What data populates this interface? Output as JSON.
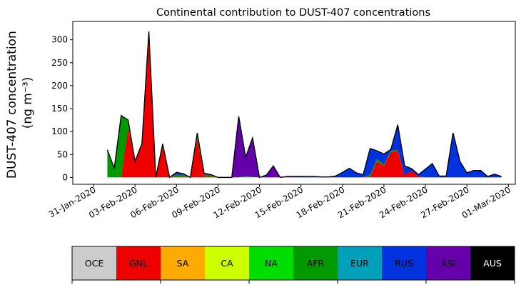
{
  "chart_data": {
    "type": "area",
    "stacked": true,
    "title": "Continental contribution to DUST-407 concentrations",
    "ylabel_line1": "DUST-407 concentration",
    "ylabel_line2": "(ng m⁻³)",
    "xlabel": "",
    "ylim": [
      -15,
      340
    ],
    "yticks": [
      0,
      50,
      100,
      150,
      200,
      250,
      300
    ],
    "xlim_days": [
      -1.5,
      30.5
    ],
    "grid": false,
    "xtick_labels": [
      "31-Jan-2020",
      "03-Feb-2020",
      "06-Feb-2020",
      "09-Feb-2020",
      "12-Feb-2020",
      "15-Feb-2020",
      "18-Feb-2020",
      "21-Feb-2020",
      "24-Feb-2020",
      "27-Feb-2020",
      "01-Mar-2020"
    ],
    "x": [
      "2020-02-01 00:00",
      "2020-02-01 12:00",
      "2020-02-02 00:00",
      "2020-02-02 12:00",
      "2020-02-03 00:00",
      "2020-02-03 12:00",
      "2020-02-04 00:00",
      "2020-02-04 12:00",
      "2020-02-05 00:00",
      "2020-02-05 12:00",
      "2020-02-06 00:00",
      "2020-02-06 12:00",
      "2020-02-07 00:00",
      "2020-02-07 12:00",
      "2020-02-08 00:00",
      "2020-02-08 12:00",
      "2020-02-09 00:00",
      "2020-02-09 12:00",
      "2020-02-10 00:00",
      "2020-02-10 12:00",
      "2020-02-11 00:00",
      "2020-02-11 12:00",
      "2020-02-12 00:00",
      "2020-02-12 12:00",
      "2020-02-13 00:00",
      "2020-02-13 12:00",
      "2020-02-14 00:00",
      "2020-02-14 12:00",
      "2020-02-15 00:00",
      "2020-02-15 12:00",
      "2020-02-16 00:00",
      "2020-02-16 12:00",
      "2020-02-17 00:00",
      "2020-02-17 12:00",
      "2020-02-18 00:00",
      "2020-02-18 12:00",
      "2020-02-19 00:00",
      "2020-02-19 12:00",
      "2020-02-20 00:00",
      "2020-02-20 12:00",
      "2020-02-21 00:00",
      "2020-02-21 12:00",
      "2020-02-22 00:00",
      "2020-02-22 12:00",
      "2020-02-23 00:00",
      "2020-02-23 12:00",
      "2020-02-24 00:00",
      "2020-02-24 12:00",
      "2020-02-25 00:00",
      "2020-02-25 12:00",
      "2020-02-26 00:00",
      "2020-02-26 12:00",
      "2020-02-27 00:00",
      "2020-02-27 12:00",
      "2020-02-28 00:00",
      "2020-02-28 12:00",
      "2020-02-29 00:00",
      "2020-02-29 12:00"
    ],
    "series": [
      {
        "name": "OCE",
        "color": "#cccccc",
        "values": [
          0,
          0,
          0,
          0,
          0,
          0,
          0,
          0,
          0,
          0,
          0,
          0,
          0,
          0,
          0,
          0,
          0,
          0,
          0,
          0,
          0,
          0,
          0,
          0,
          0,
          0,
          0,
          0,
          0,
          0,
          0,
          0,
          0,
          0,
          0,
          0,
          0,
          0,
          0,
          0,
          0,
          0,
          0,
          0,
          0,
          0,
          0,
          0,
          0,
          0,
          0,
          0,
          0,
          0,
          0,
          0,
          0,
          0
        ]
      },
      {
        "name": "GNL",
        "color": "#ee0000",
        "values": [
          0,
          0,
          0,
          110,
          35,
          70,
          315,
          0,
          70,
          0,
          2,
          1,
          0,
          85,
          3,
          2,
          0,
          0,
          0,
          0,
          0,
          0,
          0,
          0,
          0,
          0,
          0,
          0,
          0,
          0,
          0,
          0,
          0,
          0,
          0,
          0,
          0,
          0,
          2,
          35,
          25,
          55,
          58,
          5,
          14,
          2,
          0,
          0,
          0,
          0,
          0,
          0,
          0,
          0,
          0,
          0,
          0,
          0
        ]
      },
      {
        "name": "SA",
        "color": "#ffaa00",
        "values": [
          0,
          0,
          0,
          0,
          0,
          0,
          0,
          0,
          0,
          0,
          0,
          0,
          0,
          0,
          0,
          0,
          0,
          0,
          0,
          0,
          0,
          0,
          0,
          0,
          0,
          0,
          0,
          0,
          0,
          0,
          0,
          0,
          0,
          0,
          0,
          0,
          0,
          0,
          0,
          0,
          0,
          0,
          0,
          0,
          0,
          0,
          0,
          0,
          0,
          0,
          0,
          0,
          0,
          0,
          0,
          0,
          0,
          0
        ]
      },
      {
        "name": "CA",
        "color": "#ccff00",
        "values": [
          0,
          0,
          0,
          0,
          0,
          0,
          0,
          0,
          0,
          0,
          0,
          0,
          0,
          0,
          0,
          0,
          0,
          0,
          0,
          0,
          0,
          0,
          0,
          0,
          0,
          0,
          0,
          0,
          0,
          0,
          0,
          0,
          0,
          0,
          0,
          0,
          0,
          0,
          0,
          0,
          0,
          0,
          0,
          0,
          0,
          0,
          0,
          0,
          0,
          0,
          0,
          0,
          0,
          0,
          0,
          0,
          0,
          0
        ]
      },
      {
        "name": "NA",
        "color": "#00dd00",
        "values": [
          0,
          0,
          0,
          0,
          0,
          0,
          0,
          0,
          0,
          0,
          0,
          0,
          0,
          0,
          0,
          0,
          0,
          0,
          0,
          0,
          2,
          1,
          0,
          0,
          0,
          0,
          0,
          0,
          0,
          0,
          0,
          0,
          0,
          0,
          0,
          0,
          0,
          0,
          0,
          0,
          0,
          0,
          0,
          0,
          0,
          0,
          0,
          0,
          0,
          0,
          0,
          0,
          0,
          0,
          0,
          0,
          0,
          0
        ]
      },
      {
        "name": "AFR",
        "color": "#009900",
        "values": [
          60,
          20,
          135,
          15,
          0,
          4,
          3,
          0,
          3,
          0,
          4,
          4,
          0,
          8,
          3,
          2,
          0,
          0,
          0,
          0,
          0,
          0,
          0,
          0,
          0,
          0,
          0,
          0,
          0,
          0,
          0,
          0,
          0,
          0,
          0,
          0,
          0,
          0,
          4,
          5,
          3,
          3,
          2,
          0,
          0,
          0,
          0,
          0,
          0,
          0,
          0,
          0,
          0,
          0,
          0,
          0,
          0,
          0
        ]
      },
      {
        "name": "EUR",
        "color": "#00a0bb",
        "values": [
          0,
          0,
          0,
          0,
          0,
          0,
          0,
          0,
          0,
          0,
          0,
          0,
          0,
          0,
          0,
          0,
          0,
          0,
          0,
          0,
          0,
          0,
          0,
          0,
          0,
          0,
          0,
          0,
          0,
          0,
          0,
          0,
          0,
          0,
          0,
          0,
          0,
          0,
          0,
          0,
          0,
          0,
          0,
          0,
          0,
          0,
          0,
          0,
          0,
          0,
          0,
          0,
          0,
          0,
          0,
          0,
          0,
          0
        ]
      },
      {
        "name": "RUS",
        "color": "#0033dd",
        "values": [
          0,
          0,
          0,
          0,
          0,
          0,
          0,
          0,
          0,
          0,
          3,
          1,
          0,
          3,
          0,
          0,
          0,
          0,
          0,
          0,
          0,
          0,
          0,
          0,
          0,
          0,
          0,
          2,
          2,
          1,
          1,
          1,
          1,
          2,
          10,
          20,
          10,
          6,
          57,
          18,
          23,
          3,
          55,
          20,
          5,
          4,
          18,
          30,
          3,
          3,
          97,
          35,
          10,
          15,
          15,
          2,
          7,
          2
        ]
      },
      {
        "name": "ASI",
        "color": "#6600aa",
        "values": [
          0,
          0,
          0,
          0,
          0,
          0,
          0,
          0,
          0,
          0,
          2,
          2,
          0,
          1,
          3,
          2,
          0,
          0,
          0,
          133,
          42,
          85,
          0,
          5,
          25,
          0,
          2,
          0,
          0,
          1,
          1,
          0,
          0,
          1,
          1,
          0,
          0,
          0,
          0,
          0,
          0,
          0,
          0,
          0,
          0,
          0,
          0,
          0,
          0,
          0,
          0,
          0,
          0,
          0,
          0,
          0,
          0,
          0
        ]
      },
      {
        "name": "AUS",
        "color": "#000000",
        "values": [
          0,
          0,
          0,
          0,
          0,
          0,
          0,
          0,
          0,
          0,
          0,
          0,
          0,
          0,
          0,
          0,
          0,
          0,
          0,
          0,
          0,
          0,
          0,
          0,
          0,
          0,
          0,
          0,
          0,
          0,
          0,
          0,
          0,
          0,
          0,
          0,
          0,
          0,
          0,
          0,
          0,
          0,
          0,
          0,
          0,
          0,
          0,
          0,
          0,
          0,
          0,
          0,
          0,
          0,
          0,
          0,
          0,
          0
        ]
      }
    ],
    "legend": {
      "placement": "bottom",
      "items": [
        {
          "label": "OCE",
          "color": "#cccccc",
          "text_color": "#000000"
        },
        {
          "label": "GNL",
          "color": "#ee0000",
          "text_color": "#000000"
        },
        {
          "label": "SA",
          "color": "#ffaa00",
          "text_color": "#000000"
        },
        {
          "label": "CA",
          "color": "#ccff00",
          "text_color": "#000000"
        },
        {
          "label": "NA",
          "color": "#00dd00",
          "text_color": "#000000"
        },
        {
          "label": "AFR",
          "color": "#009900",
          "text_color": "#000000"
        },
        {
          "label": "EUR",
          "color": "#00a0bb",
          "text_color": "#000000"
        },
        {
          "label": "RUS",
          "color": "#0033dd",
          "text_color": "#000000"
        },
        {
          "label": "ASI",
          "color": "#6600aa",
          "text_color": "#000000"
        },
        {
          "label": "AUS",
          "color": "#000000",
          "text_color": "#ffffff"
        }
      ]
    }
  }
}
